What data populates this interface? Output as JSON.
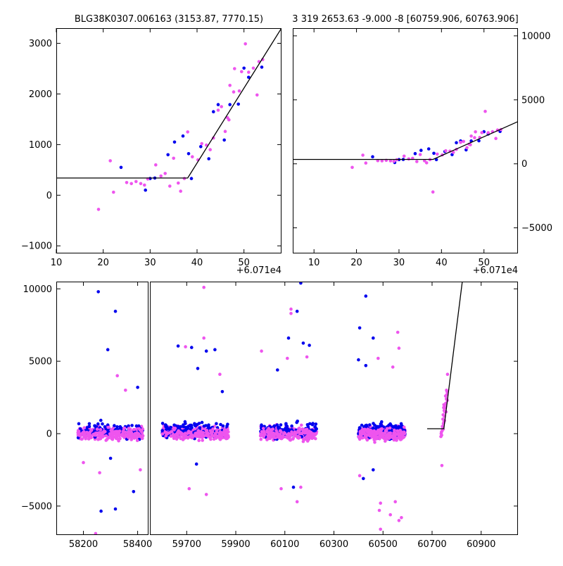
{
  "chart_data": [
    {
      "type": "scatter",
      "title": "BLG38K0307.006163 (3153.87, 7770.15)",
      "x_offset_label": "+6.071e4",
      "xlim": [
        10,
        58
      ],
      "ylim": [
        -1150,
        3300
      ],
      "x_ticks": [
        10,
        20,
        30,
        40,
        50
      ],
      "y_ticks": [
        -1000,
        0,
        1000,
        2000,
        3000
      ],
      "y_axis_side": "left",
      "series": [
        {
          "color": "#0000ee",
          "points": [
            [
              23.8,
              550
            ],
            [
              29.0,
              100
            ],
            [
              30.0,
              330
            ],
            [
              31.0,
              340
            ],
            [
              33.8,
              800
            ],
            [
              35.2,
              1050
            ],
            [
              37.0,
              1170
            ],
            [
              38.2,
              820
            ],
            [
              38.8,
              330
            ],
            [
              40.8,
              960
            ],
            [
              42.5,
              720
            ],
            [
              43.5,
              1650
            ],
            [
              44.5,
              1790
            ],
            [
              45.8,
              1090
            ],
            [
              47.0,
              1790
            ],
            [
              48.8,
              1800
            ],
            [
              50.0,
              2510
            ],
            [
              51.0,
              2330
            ],
            [
              53.8,
              2530
            ]
          ]
        },
        {
          "color": "#ee55ee",
          "points": [
            [
              19.0,
              -280
            ],
            [
              21.5,
              680
            ],
            [
              22.2,
              60
            ],
            [
              25.0,
              250
            ],
            [
              26.0,
              230
            ],
            [
              27.0,
              270
            ],
            [
              28.0,
              230
            ],
            [
              28.8,
              200
            ],
            [
              29.5,
              320
            ],
            [
              31.2,
              600
            ],
            [
              32.3,
              380
            ],
            [
              33.2,
              430
            ],
            [
              34.2,
              180
            ],
            [
              35.0,
              730
            ],
            [
              36.0,
              240
            ],
            [
              36.5,
              80
            ],
            [
              37.3,
              330
            ],
            [
              38.0,
              1250
            ],
            [
              39.0,
              760
            ],
            [
              40.2,
              700
            ],
            [
              41.0,
              1020
            ],
            [
              42.0,
              990
            ],
            [
              42.8,
              900
            ],
            [
              43.5,
              1130
            ],
            [
              44.5,
              1680
            ],
            [
              45.2,
              1750
            ],
            [
              46.0,
              1260
            ],
            [
              46.5,
              1530
            ],
            [
              46.8,
              1490
            ],
            [
              47.0,
              2170
            ],
            [
              47.8,
              2040
            ],
            [
              48.0,
              2500
            ],
            [
              49.0,
              2060
            ],
            [
              49.5,
              2440
            ],
            [
              50.3,
              2990
            ],
            [
              51.0,
              2430
            ],
            [
              52.0,
              2510
            ],
            [
              52.8,
              1980
            ],
            [
              53.2,
              2640
            ],
            [
              54.0,
              2680
            ]
          ]
        }
      ],
      "fit_line": [
        [
          10,
          340
        ],
        [
          38,
          340
        ],
        [
          58,
          3300
        ]
      ]
    },
    {
      "type": "scatter",
      "title": "3 319 2653.63 -9.000 -8 [60759.906, 60763.906]",
      "x_offset_label": "+6.071e4",
      "xlim": [
        5,
        58
      ],
      "ylim": [
        -7000,
        10600
      ],
      "x_ticks": [
        10,
        20,
        30,
        40,
        50
      ],
      "y_ticks": [
        -5000,
        0,
        5000,
        10000
      ],
      "y_axis_side": "right",
      "series": [
        {
          "color": "#0000ee",
          "points": [
            [
              23.8,
              550
            ],
            [
              29.0,
              100
            ],
            [
              30.0,
              330
            ],
            [
              31.0,
              340
            ],
            [
              33.8,
              800
            ],
            [
              35.2,
              1050
            ],
            [
              37.0,
              1170
            ],
            [
              38.2,
              820
            ],
            [
              38.8,
              330
            ],
            [
              40.8,
              960
            ],
            [
              42.5,
              720
            ],
            [
              43.5,
              1650
            ],
            [
              44.5,
              1790
            ],
            [
              45.8,
              1090
            ],
            [
              47.0,
              1790
            ],
            [
              48.8,
              1800
            ],
            [
              50.0,
              2510
            ],
            [
              51.0,
              2330
            ],
            [
              53.8,
              2530
            ]
          ]
        },
        {
          "color": "#ee55ee",
          "points": [
            [
              19.0,
              -280
            ],
            [
              21.5,
              680
            ],
            [
              22.2,
              60
            ],
            [
              25.0,
              250
            ],
            [
              26.0,
              230
            ],
            [
              27.0,
              270
            ],
            [
              28.0,
              230
            ],
            [
              28.8,
              200
            ],
            [
              29.5,
              320
            ],
            [
              31.2,
              600
            ],
            [
              32.3,
              380
            ],
            [
              33.2,
              430
            ],
            [
              34.2,
              180
            ],
            [
              35.0,
              730
            ],
            [
              36.0,
              240
            ],
            [
              36.5,
              80
            ],
            [
              37.3,
              330
            ],
            [
              38.0,
              -2200
            ],
            [
              39.0,
              760
            ],
            [
              40.2,
              700
            ],
            [
              41.0,
              1020
            ],
            [
              42.0,
              990
            ],
            [
              42.8,
              900
            ],
            [
              43.5,
              1130
            ],
            [
              44.5,
              1680
            ],
            [
              45.2,
              1750
            ],
            [
              46.0,
              1260
            ],
            [
              46.5,
              1530
            ],
            [
              46.8,
              1490
            ],
            [
              47.0,
              2170
            ],
            [
              47.8,
              2040
            ],
            [
              48.0,
              2500
            ],
            [
              49.0,
              2060
            ],
            [
              49.5,
              2440
            ],
            [
              50.3,
              4100
            ],
            [
              51.0,
              2430
            ],
            [
              52.0,
              2510
            ],
            [
              52.8,
              1980
            ],
            [
              53.2,
              2640
            ],
            [
              54.0,
              2680
            ]
          ]
        }
      ],
      "fit_line": [
        [
          5,
          340
        ],
        [
          38,
          340
        ],
        [
          58,
          3300
        ]
      ]
    },
    {
      "type": "scatter",
      "xlim": [
        58100,
        61050
      ],
      "ylim": [
        -7000,
        10500
      ],
      "x_ticks": [
        58200,
        58400,
        59700,
        59900,
        60100,
        60300,
        60500,
        60700,
        60900
      ],
      "y_ticks": [
        -5000,
        0,
        5000,
        10000
      ],
      "y_axis_side": "left",
      "seasons": [
        {
          "range": [
            58180,
            58420
          ],
          "n_blue": 90,
          "n_pink": 260
        },
        {
          "range": [
            59600,
            59870
          ],
          "n_blue": 130,
          "n_pink": 260
        },
        {
          "range": [
            60000,
            60230
          ],
          "n_blue": 110,
          "n_pink": 230
        },
        {
          "range": [
            60400,
            60590
          ],
          "n_blue": 140,
          "n_pink": 300
        }
      ],
      "outliers": [
        {
          "color": "#0000ee",
          "points": [
            [
              58255,
              9800
            ],
            [
              58318,
              8450
            ],
            [
              58290,
              5800
            ],
            [
              58265,
              -5350
            ],
            [
              58318,
              -5200
            ],
            [
              58385,
              -4000
            ],
            [
              58400,
              3200
            ],
            [
              58300,
              -1700
            ],
            [
              59665,
              6050
            ],
            [
              59720,
              5950
            ],
            [
              59745,
              4500
            ],
            [
              59780,
              5700
            ],
            [
              59815,
              5800
            ],
            [
              59845,
              2900
            ],
            [
              59740,
              -2100
            ],
            [
              60165,
              10400
            ],
            [
              60150,
              8450
            ],
            [
              60115,
              6600
            ],
            [
              60175,
              6250
            ],
            [
              60200,
              6100
            ],
            [
              60070,
              4400
            ],
            [
              60135,
              -3700
            ],
            [
              60405,
              7300
            ],
            [
              60430,
              9500
            ],
            [
              60460,
              6600
            ],
            [
              60400,
              5100
            ],
            [
              60430,
              4700
            ],
            [
              60420,
              -3100
            ],
            [
              60460,
              -2500
            ]
          ]
        },
        {
          "color": "#ee55ee",
          "points": [
            [
              58260,
              -2700
            ],
            [
              58245,
              -6900
            ],
            [
              58325,
              4000
            ],
            [
              58355,
              3000
            ],
            [
              58410,
              -2500
            ],
            [
              58200,
              -2000
            ],
            [
              59770,
              10100
            ],
            [
              59770,
              6600
            ],
            [
              59695,
              6000
            ],
            [
              59780,
              -4200
            ],
            [
              59710,
              -3800
            ],
            [
              59835,
              4100
            ],
            [
              60125,
              8600
            ],
            [
              60125,
              8300
            ],
            [
              60005,
              5700
            ],
            [
              60110,
              5200
            ],
            [
              60190,
              5300
            ],
            [
              60150,
              -4700
            ],
            [
              60085,
              -3800
            ],
            [
              60165,
              -3700
            ],
            [
              60560,
              7000
            ],
            [
              60565,
              5900
            ],
            [
              60480,
              5200
            ],
            [
              60540,
              4600
            ],
            [
              60490,
              -4800
            ],
            [
              60485,
              -5300
            ],
            [
              60490,
              -6600
            ],
            [
              60565,
              -6000
            ],
            [
              60530,
              -5600
            ],
            [
              60575,
              -5800
            ],
            [
              60550,
              -4700
            ],
            [
              60405,
              -2900
            ]
          ]
        }
      ],
      "rise_points": [
        [
          60740,
          -2200
        ],
        [
          60745,
          300
        ],
        [
          60748,
          800
        ],
        [
          60750,
          1200
        ],
        [
          60752,
          1500
        ],
        [
          60754,
          1800
        ],
        [
          60756,
          2100
        ],
        [
          60758,
          2400
        ],
        [
          60760,
          2700
        ],
        [
          60762,
          2300
        ],
        [
          60763,
          4100
        ],
        [
          60742,
          500
        ],
        [
          60744,
          1000
        ],
        [
          60746,
          700
        ],
        [
          60749,
          1600
        ],
        [
          60751,
          900
        ],
        [
          60755,
          2600
        ],
        [
          60759,
          3000
        ],
        [
          60737,
          0
        ],
        [
          60739,
          -100
        ],
        [
          60741,
          200
        ],
        [
          60743,
          300
        ],
        [
          60747,
          1800
        ],
        [
          60753,
          2000
        ],
        [
          60757,
          1500
        ],
        [
          60761,
          2900
        ],
        [
          60738,
          100
        ],
        [
          60736,
          -200
        ],
        [
          60745,
          1300
        ],
        [
          60748,
          2000
        ]
      ],
      "fit_line": [
        [
          60680,
          340
        ],
        [
          60748,
          340
        ],
        [
          60823,
          10500
        ]
      ]
    }
  ]
}
